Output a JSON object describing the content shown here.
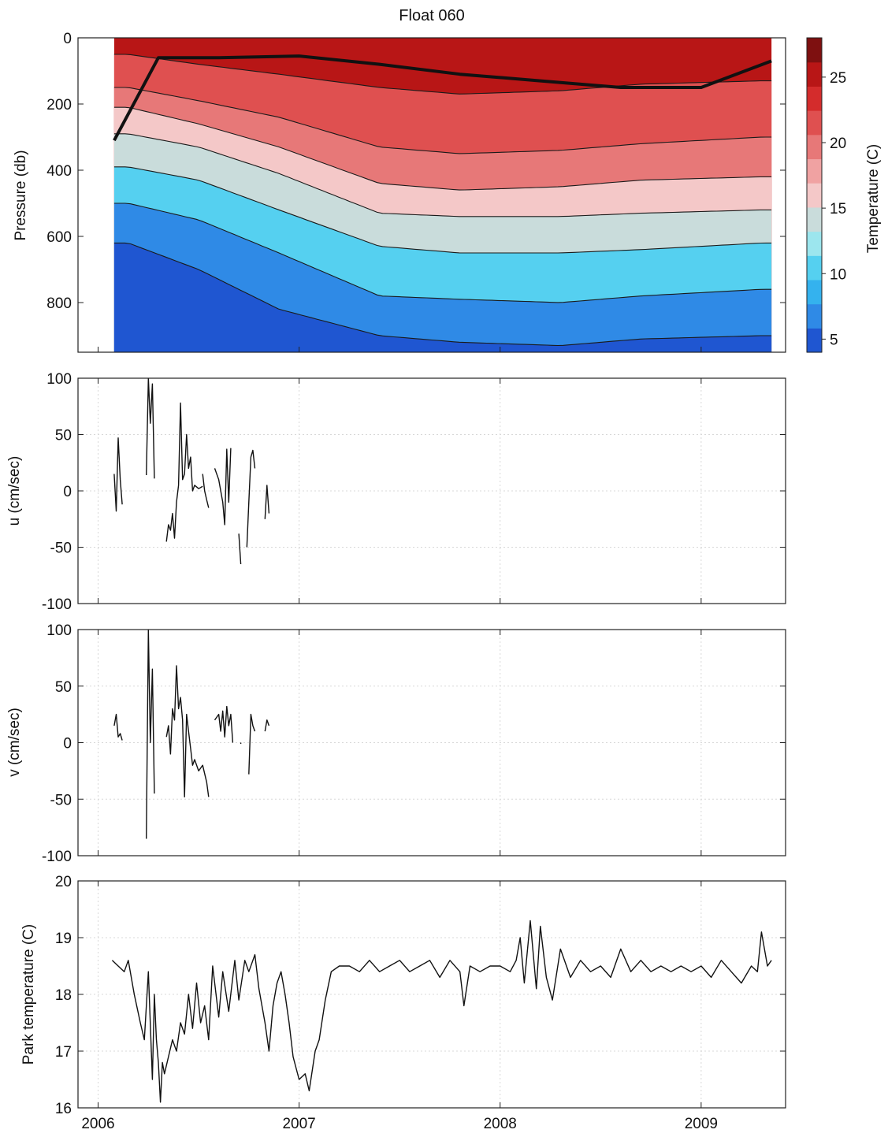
{
  "figure": {
    "title": "Float 060",
    "x_tick_labels": [
      "2006",
      "2007",
      "2008",
      "2009"
    ]
  },
  "chart_data": [
    {
      "type": "heatmap",
      "title": "Float 060",
      "ylabel": "Pressure (db)",
      "ylim": [
        950,
        0
      ],
      "y_reversed": true,
      "y_ticks": [
        0,
        200,
        400,
        600,
        800
      ],
      "xlim": [
        2005.9,
        2009.42
      ],
      "x_ticks": [
        2006,
        2007,
        2008,
        2009
      ],
      "data_x_range": [
        2006.08,
        2009.35
      ],
      "colorbar": {
        "label": "Temperature (C)",
        "range": [
          4,
          28
        ],
        "ticks": [
          5,
          10,
          15,
          20,
          25
        ],
        "colors_low_to_high": [
          "#1f56d1",
          "#2f8ae6",
          "#34b2ee",
          "#55d0f0",
          "#9ce6ee",
          "#c9dcdb",
          "#f4c8c8",
          "#f0a2a2",
          "#e77878",
          "#df5050",
          "#d42c2c",
          "#b81616",
          "#7e1010"
        ]
      },
      "isotherm_depths": {
        "x": [
          2006.15,
          2006.5,
          2006.9,
          2007.4,
          2007.8,
          2008.3,
          2008.7,
          2009.3
        ],
        "isotherms": [
          {
            "temperature": 18,
            "pressure": [
              50,
              80,
              110,
              150,
              170,
              160,
              140,
              130
            ]
          },
          {
            "temperature": 16,
            "pressure": [
              150,
              190,
              240,
              330,
              350,
              340,
              320,
              300
            ]
          },
          {
            "temperature": 14,
            "pressure": [
              210,
              260,
              330,
              440,
              460,
              450,
              430,
              420
            ]
          },
          {
            "temperature": 12,
            "pressure": [
              290,
              330,
              410,
              530,
              540,
              540,
              530,
              520
            ]
          },
          {
            "temperature": 10,
            "pressure": [
              390,
              430,
              520,
              630,
              650,
              650,
              640,
              620
            ]
          },
          {
            "temperature": 8,
            "pressure": [
              500,
              550,
              650,
              780,
              790,
              800,
              780,
              760
            ]
          },
          {
            "temperature": 6,
            "pressure": [
              620,
              700,
              820,
              900,
              920,
              930,
              910,
              900
            ]
          }
        ]
      },
      "mixed_layer_depth": {
        "x": [
          2006.08,
          2006.3,
          2006.6,
          2007.0,
          2007.4,
          2007.8,
          2008.2,
          2008.6,
          2009.0,
          2009.35
        ],
        "pressure": [
          310,
          60,
          60,
          55,
          80,
          110,
          130,
          150,
          150,
          70
        ]
      }
    },
    {
      "type": "line",
      "xlabel": "",
      "ylabel": "u (cm/sec)",
      "ylim": [
        -100,
        100
      ],
      "y_ticks": [
        -100,
        -50,
        0,
        50,
        100
      ],
      "xlim": [
        2005.9,
        2009.42
      ],
      "x_ticks": [
        2006,
        2007,
        2008,
        2009
      ],
      "grid": true,
      "series": [
        {
          "segments": [
            {
              "x": [
                2006.08,
                2006.09,
                2006.1,
                2006.11,
                2006.12
              ],
              "y": [
                15,
                -18,
                47,
                10,
                -12
              ]
            },
            {
              "x": [
                2006.24,
                2006.25,
                2006.26,
                2006.27,
                2006.28
              ],
              "y": [
                14,
                100,
                60,
                95,
                11
              ]
            },
            {
              "x": [
                2006.34,
                2006.35,
                2006.36,
                2006.37,
                2006.38,
                2006.39,
                2006.4,
                2006.41,
                2006.42,
                2006.43,
                2006.44,
                2006.45,
                2006.46,
                2006.47,
                2006.48,
                2006.5,
                2006.52
              ],
              "y": [
                -45,
                -30,
                -35,
                -20,
                -42,
                -10,
                5,
                78,
                10,
                15,
                50,
                20,
                30,
                0,
                5,
                2,
                4
              ]
            },
            {
              "x": [
                2006.52,
                2006.53,
                2006.54,
                2006.55
              ],
              "y": [
                15,
                0,
                -8,
                -15
              ]
            },
            {
              "x": [
                2006.58,
                2006.6,
                2006.62,
                2006.63,
                2006.64,
                2006.65,
                2006.66
              ],
              "y": [
                20,
                10,
                -10,
                -30,
                37,
                -10,
                38
              ]
            },
            {
              "x": [
                2006.7,
                2006.71
              ],
              "y": [
                -38,
                -65
              ]
            },
            {
              "x": [
                2006.74,
                2006.75,
                2006.76,
                2006.77,
                2006.78
              ],
              "y": [
                -50,
                -10,
                30,
                36,
                20
              ]
            },
            {
              "x": [
                2006.83,
                2006.84,
                2006.85
              ],
              "y": [
                -25,
                5,
                -20
              ]
            }
          ]
        }
      ]
    },
    {
      "type": "line",
      "xlabel": "",
      "ylabel": "v (cm/sec)",
      "ylim": [
        -100,
        100
      ],
      "y_ticks": [
        -100,
        -50,
        0,
        50,
        100
      ],
      "xlim": [
        2005.9,
        2009.42
      ],
      "x_ticks": [
        2006,
        2007,
        2008,
        2009
      ],
      "grid": true,
      "series": [
        {
          "segments": [
            {
              "x": [
                2006.08,
                2006.09,
                2006.1,
                2006.11,
                2006.12
              ],
              "y": [
                15,
                25,
                5,
                8,
                2
              ]
            },
            {
              "x": [
                2006.24,
                2006.25,
                2006.26,
                2006.27,
                2006.28
              ],
              "y": [
                -85,
                100,
                0,
                65,
                -45
              ]
            },
            {
              "x": [
                2006.34,
                2006.35,
                2006.36,
                2006.37,
                2006.38,
                2006.39,
                2006.4,
                2006.41,
                2006.42,
                2006.43,
                2006.44,
                2006.45,
                2006.46,
                2006.47,
                2006.48,
                2006.5,
                2006.52,
                2006.54,
                2006.55
              ],
              "y": [
                5,
                15,
                -10,
                30,
                20,
                68,
                30,
                40,
                20,
                -48,
                25,
                10,
                -5,
                -20,
                -15,
                -25,
                -20,
                -35,
                -48
              ]
            },
            {
              "x": [
                2006.58,
                2006.6,
                2006.61,
                2006.62,
                2006.63,
                2006.64,
                2006.65,
                2006.66,
                2006.67
              ],
              "y": [
                20,
                25,
                10,
                28,
                5,
                32,
                15,
                25,
                0
              ]
            },
            {
              "x": [
                2006.71
              ],
              "y": [
                0
              ]
            },
            {
              "x": [
                2006.75,
                2006.76,
                2006.77,
                2006.78
              ],
              "y": [
                -28,
                25,
                15,
                10
              ]
            },
            {
              "x": [
                2006.83,
                2006.84,
                2006.85
              ],
              "y": [
                10,
                20,
                15
              ]
            }
          ]
        }
      ]
    },
    {
      "type": "line",
      "xlabel": "",
      "ylabel": "Park temperature (C)",
      "ylim": [
        16,
        20
      ],
      "y_ticks": [
        16,
        17,
        18,
        19,
        20
      ],
      "xlim": [
        2005.9,
        2009.42
      ],
      "x_ticks": [
        2006,
        2007,
        2008,
        2009
      ],
      "grid": true,
      "series": [
        {
          "x": [
            2006.07,
            2006.1,
            2006.13,
            2006.15,
            2006.18,
            2006.21,
            2006.23,
            2006.25,
            2006.27,
            2006.28,
            2006.29,
            2006.3,
            2006.31,
            2006.32,
            2006.33,
            2006.35,
            2006.37,
            2006.39,
            2006.41,
            2006.43,
            2006.45,
            2006.47,
            2006.49,
            2006.51,
            2006.53,
            2006.55,
            2006.57,
            2006.6,
            2006.62,
            2006.65,
            2006.68,
            2006.7,
            2006.73,
            2006.75,
            2006.78,
            2006.8,
            2006.83,
            2006.85,
            2006.87,
            2006.89,
            2006.91,
            2006.93,
            2006.95,
            2006.97,
            2007.0,
            2007.03,
            2007.05,
            2007.08,
            2007.1,
            2007.13,
            2007.16,
            2007.2,
            2007.25,
            2007.3,
            2007.35,
            2007.4,
            2007.45,
            2007.5,
            2007.55,
            2007.6,
            2007.65,
            2007.7,
            2007.75,
            2007.8,
            2007.82,
            2007.85,
            2007.9,
            2007.95,
            2008.0,
            2008.05,
            2008.08,
            2008.1,
            2008.12,
            2008.15,
            2008.18,
            2008.2,
            2008.23,
            2008.26,
            2008.3,
            2008.35,
            2008.4,
            2008.45,
            2008.5,
            2008.55,
            2008.6,
            2008.65,
            2008.7,
            2008.75,
            2008.8,
            2008.85,
            2008.9,
            2008.95,
            2009.0,
            2009.05,
            2009.1,
            2009.15,
            2009.2,
            2009.25,
            2009.28,
            2009.3,
            2009.33,
            2009.35
          ],
          "y": [
            18.6,
            18.5,
            18.4,
            18.6,
            18.0,
            17.5,
            17.2,
            18.4,
            16.5,
            18.0,
            17.2,
            16.8,
            16.1,
            16.8,
            16.6,
            16.9,
            17.2,
            17.0,
            17.5,
            17.3,
            18.0,
            17.4,
            18.2,
            17.5,
            17.8,
            17.2,
            18.5,
            17.6,
            18.4,
            17.7,
            18.6,
            17.9,
            18.6,
            18.4,
            18.7,
            18.1,
            17.5,
            17.0,
            17.8,
            18.2,
            18.4,
            18.0,
            17.5,
            16.9,
            16.5,
            16.6,
            16.3,
            17.0,
            17.2,
            17.9,
            18.4,
            18.5,
            18.5,
            18.4,
            18.6,
            18.4,
            18.5,
            18.6,
            18.4,
            18.5,
            18.6,
            18.3,
            18.6,
            18.4,
            17.8,
            18.5,
            18.4,
            18.5,
            18.5,
            18.4,
            18.6,
            19.0,
            18.2,
            19.3,
            18.1,
            19.2,
            18.3,
            17.9,
            18.8,
            18.3,
            18.6,
            18.4,
            18.5,
            18.3,
            18.8,
            18.4,
            18.6,
            18.4,
            18.5,
            18.4,
            18.5,
            18.4,
            18.5,
            18.3,
            18.6,
            18.4,
            18.2,
            18.5,
            18.4,
            19.1,
            18.5,
            18.6
          ]
        }
      ]
    }
  ]
}
